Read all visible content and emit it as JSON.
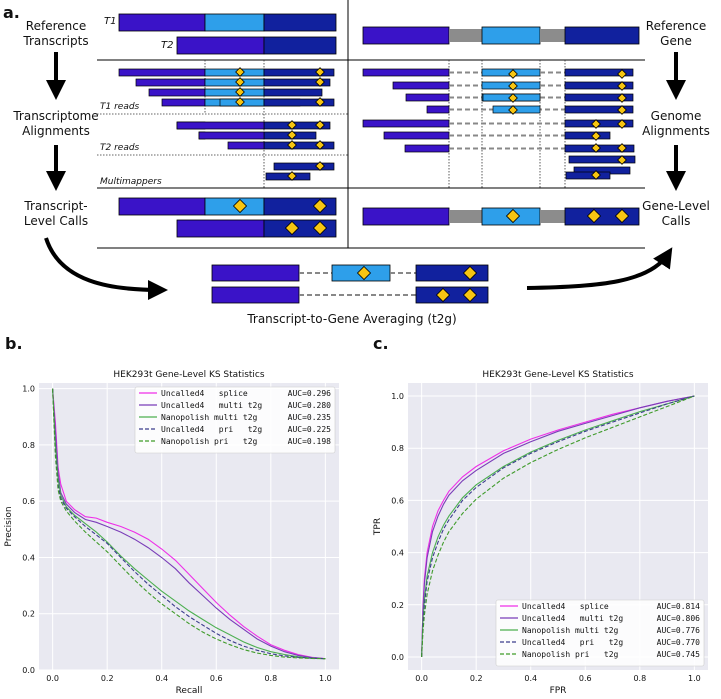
{
  "panel_a": {
    "label": "a.",
    "left_labels": [
      "Reference\nTranscripts",
      "Transcriptome\nAlignments",
      "Transcript-\nLevel Calls"
    ],
    "right_labels": [
      "Reference\nGene",
      "Genome\nAlignments",
      "Gene-Level\nCalls"
    ],
    "transcript_names": [
      "T1",
      "T2"
    ],
    "read_group_labels": [
      "T1 reads",
      "T2 reads",
      "Multimappers"
    ],
    "bottom_caption": "Transcript-to-Gene Averaging (t2g)"
  },
  "colors": {
    "dark_blue": "#11219e",
    "mid_blue": "#3a13c8",
    "light_blue": "#2e9fea",
    "intron_gray": "#8c8c8c",
    "marker_gold": "#f7c512",
    "plot_bg": "#e9e9f1",
    "magenta": "#ee2ee8",
    "purple": "#7a3db8",
    "green": "#4caf50",
    "navy_dash": "#3b3d8c",
    "green_dash": "#3f9b2a"
  },
  "chart_data": [
    {
      "panel_label": "b.",
      "type": "line",
      "title": "HEK293t Gene-Level KS Statistics",
      "xlabel": "Recall",
      "ylabel": "Precision",
      "xlim": [
        -0.05,
        1.05
      ],
      "ylim": [
        0,
        1.02
      ],
      "xticks": [
        "0.0",
        "0.2",
        "0.4",
        "0.6",
        "0.8",
        "1.0"
      ],
      "yticks": [
        "0.0",
        "0.2",
        "0.4",
        "0.6",
        "0.8",
        "1.0"
      ],
      "legend_position": "top-right",
      "series": [
        {
          "name": "Uncalled4   splice",
          "auc": "AUC=0.296",
          "style": "solid",
          "color_key": "magenta",
          "x": [
            0,
            0.01,
            0.02,
            0.03,
            0.05,
            0.08,
            0.12,
            0.16,
            0.2,
            0.25,
            0.3,
            0.35,
            0.4,
            0.45,
            0.5,
            0.55,
            0.6,
            0.65,
            0.7,
            0.75,
            0.8,
            0.85,
            0.9,
            0.95,
            1.0
          ],
          "y": [
            1.0,
            0.88,
            0.72,
            0.66,
            0.6,
            0.57,
            0.545,
            0.54,
            0.525,
            0.51,
            0.49,
            0.465,
            0.43,
            0.39,
            0.34,
            0.29,
            0.24,
            0.195,
            0.155,
            0.12,
            0.09,
            0.07,
            0.055,
            0.045,
            0.04
          ]
        },
        {
          "name": "Uncalled4   multi t2g",
          "auc": "AUC=0.280",
          "style": "solid",
          "color_key": "purple",
          "x": [
            0,
            0.01,
            0.02,
            0.03,
            0.05,
            0.08,
            0.12,
            0.16,
            0.2,
            0.25,
            0.3,
            0.35,
            0.4,
            0.45,
            0.5,
            0.55,
            0.6,
            0.65,
            0.7,
            0.75,
            0.8,
            0.85,
            0.9,
            0.95,
            1.0
          ],
          "y": [
            1.0,
            0.85,
            0.7,
            0.63,
            0.59,
            0.56,
            0.535,
            0.525,
            0.51,
            0.49,
            0.465,
            0.435,
            0.4,
            0.36,
            0.31,
            0.265,
            0.22,
            0.18,
            0.145,
            0.11,
            0.085,
            0.065,
            0.052,
            0.044,
            0.04
          ]
        },
        {
          "name": "Nanopolish multi t2g",
          "auc": "AUC=0.235",
          "style": "solid",
          "color_key": "green",
          "x": [
            0,
            0.01,
            0.02,
            0.03,
            0.05,
            0.08,
            0.12,
            0.16,
            0.2,
            0.25,
            0.3,
            0.35,
            0.4,
            0.45,
            0.5,
            0.55,
            0.6,
            0.65,
            0.7,
            0.75,
            0.8,
            0.85,
            0.9,
            0.95,
            1.0
          ],
          "y": [
            1.0,
            0.8,
            0.68,
            0.62,
            0.58,
            0.55,
            0.52,
            0.49,
            0.455,
            0.405,
            0.36,
            0.32,
            0.28,
            0.245,
            0.21,
            0.18,
            0.15,
            0.125,
            0.1,
            0.08,
            0.065,
            0.055,
            0.047,
            0.042,
            0.04
          ]
        },
        {
          "name": "Uncalled4   pri   t2g",
          "auc": "AUC=0.225",
          "style": "dashed",
          "color_key": "navy_dash",
          "x": [
            0,
            0.01,
            0.02,
            0.03,
            0.05,
            0.08,
            0.12,
            0.16,
            0.2,
            0.25,
            0.3,
            0.35,
            0.4,
            0.45,
            0.5,
            0.55,
            0.6,
            0.65,
            0.7,
            0.75,
            0.8,
            0.85,
            0.9,
            0.95,
            1.0
          ],
          "y": [
            1.0,
            0.78,
            0.66,
            0.61,
            0.575,
            0.545,
            0.51,
            0.48,
            0.45,
            0.4,
            0.35,
            0.305,
            0.265,
            0.225,
            0.19,
            0.16,
            0.13,
            0.105,
            0.085,
            0.07,
            0.058,
            0.05,
            0.045,
            0.042,
            0.04
          ]
        },
        {
          "name": "Nanopolish pri   t2g",
          "auc": "AUC=0.198",
          "style": "dashed",
          "color_key": "green_dash",
          "x": [
            0,
            0.01,
            0.02,
            0.03,
            0.05,
            0.08,
            0.12,
            0.16,
            0.2,
            0.25,
            0.3,
            0.35,
            0.4,
            0.45,
            0.5,
            0.55,
            0.6,
            0.65,
            0.7,
            0.75,
            0.8,
            0.85,
            0.9,
            0.95,
            1.0
          ],
          "y": [
            1.0,
            0.76,
            0.64,
            0.6,
            0.565,
            0.53,
            0.49,
            0.455,
            0.42,
            0.37,
            0.32,
            0.275,
            0.235,
            0.2,
            0.165,
            0.135,
            0.11,
            0.09,
            0.073,
            0.06,
            0.052,
            0.046,
            0.043,
            0.041,
            0.04
          ]
        }
      ]
    },
    {
      "panel_label": "c.",
      "type": "line",
      "title": "HEK293t Gene-Level KS Statistics",
      "xlabel": "FPR",
      "ylabel": "TPR",
      "xlim": [
        -0.05,
        1.05
      ],
      "ylim": [
        -0.05,
        1.05
      ],
      "xticks": [
        "0.0",
        "0.2",
        "0.4",
        "0.6",
        "0.8",
        "1.0"
      ],
      "yticks": [
        "0.0",
        "0.2",
        "0.4",
        "0.6",
        "0.8",
        "1.0"
      ],
      "legend_position": "bottom-right",
      "series": [
        {
          "name": "Uncalled4   splice",
          "auc": "AUC=0.814",
          "style": "solid",
          "color_key": "magenta",
          "x": [
            0,
            0.005,
            0.01,
            0.02,
            0.04,
            0.06,
            0.08,
            0.1,
            0.15,
            0.2,
            0.3,
            0.4,
            0.5,
            0.6,
            0.7,
            0.8,
            0.9,
            1.0
          ],
          "y": [
            0,
            0.2,
            0.3,
            0.4,
            0.5,
            0.56,
            0.6,
            0.635,
            0.69,
            0.73,
            0.79,
            0.835,
            0.87,
            0.9,
            0.93,
            0.955,
            0.98,
            1.0
          ]
        },
        {
          "name": "Uncalled4   multi t2g",
          "auc": "AUC=0.806",
          "style": "solid",
          "color_key": "purple",
          "x": [
            0,
            0.005,
            0.01,
            0.02,
            0.04,
            0.06,
            0.08,
            0.1,
            0.15,
            0.2,
            0.3,
            0.4,
            0.5,
            0.6,
            0.7,
            0.8,
            0.9,
            1.0
          ],
          "y": [
            0,
            0.18,
            0.28,
            0.38,
            0.48,
            0.54,
            0.585,
            0.62,
            0.675,
            0.715,
            0.78,
            0.825,
            0.865,
            0.895,
            0.925,
            0.955,
            0.98,
            1.0
          ]
        },
        {
          "name": "Nanopolish multi t2g",
          "auc": "AUC=0.776",
          "style": "solid",
          "color_key": "green",
          "x": [
            0,
            0.005,
            0.01,
            0.02,
            0.04,
            0.06,
            0.08,
            0.1,
            0.15,
            0.2,
            0.3,
            0.4,
            0.5,
            0.6,
            0.7,
            0.8,
            0.9,
            1.0
          ],
          "y": [
            0,
            0.14,
            0.22,
            0.31,
            0.4,
            0.46,
            0.505,
            0.54,
            0.61,
            0.66,
            0.73,
            0.785,
            0.83,
            0.87,
            0.905,
            0.94,
            0.97,
            1.0
          ]
        },
        {
          "name": "Uncalled4   pri   t2g",
          "auc": "AUC=0.770",
          "style": "dashed",
          "color_key": "navy_dash",
          "x": [
            0,
            0.005,
            0.01,
            0.02,
            0.04,
            0.06,
            0.08,
            0.1,
            0.15,
            0.2,
            0.3,
            0.4,
            0.5,
            0.6,
            0.7,
            0.8,
            0.9,
            1.0
          ],
          "y": [
            0,
            0.12,
            0.2,
            0.29,
            0.38,
            0.44,
            0.49,
            0.525,
            0.6,
            0.65,
            0.725,
            0.78,
            0.825,
            0.865,
            0.9,
            0.935,
            0.97,
            1.0
          ]
        },
        {
          "name": "Nanopolish pri   t2g",
          "auc": "AUC=0.745",
          "style": "dashed",
          "color_key": "green_dash",
          "x": [
            0,
            0.005,
            0.01,
            0.02,
            0.04,
            0.06,
            0.08,
            0.1,
            0.15,
            0.2,
            0.3,
            0.4,
            0.5,
            0.6,
            0.7,
            0.8,
            0.9,
            1.0
          ],
          "y": [
            0,
            0.1,
            0.16,
            0.24,
            0.33,
            0.39,
            0.44,
            0.48,
            0.55,
            0.605,
            0.685,
            0.745,
            0.795,
            0.84,
            0.88,
            0.92,
            0.96,
            1.0
          ]
        }
      ]
    }
  ]
}
